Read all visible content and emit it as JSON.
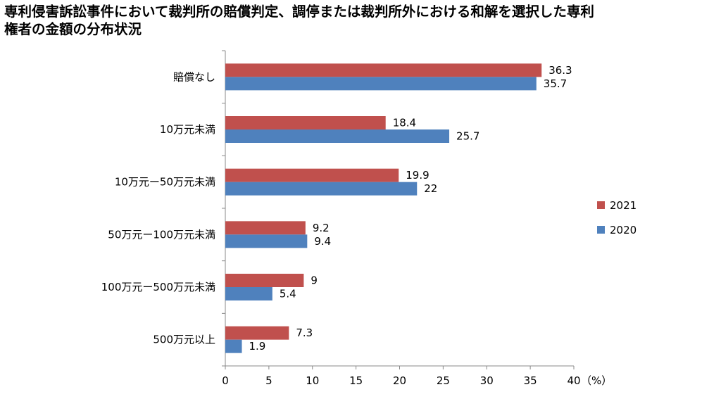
{
  "title_lines": [
    "専利侵害訴訟事件において裁判所の賠償判定、調停または裁判所外における和解を選択した専利",
    "権者の金額の分布状況"
  ],
  "chart_data": {
    "type": "bar",
    "orientation": "horizontal",
    "title": "専利侵害訴訟事件において裁判所の賠償判定、調停または裁判所外における和解を選択した専利権者の金額の分布状況",
    "categories": [
      "賠償なし",
      "10万元未満",
      "10万元ー50万元未満",
      "50万元ー100万元未満",
      "100万元ー500万元未満",
      "500万元以上"
    ],
    "series": [
      {
        "name": "2021",
        "color": "#c0504d",
        "values": [
          36.3,
          18.4,
          19.9,
          9.2,
          9,
          7.3
        ]
      },
      {
        "name": "2020",
        "color": "#4f81bd",
        "values": [
          35.7,
          25.7,
          22,
          9.4,
          5.4,
          1.9
        ]
      }
    ],
    "value_labels": {
      "2021": [
        "36.3",
        "18.4",
        "19.9",
        "9.2",
        "9",
        "7.3"
      ],
      "2020": [
        "35.7",
        "25.7",
        "22",
        "9.4",
        "5.4",
        "1.9"
      ]
    },
    "xlim": [
      0,
      40
    ],
    "xticks": [
      0,
      5,
      10,
      15,
      20,
      25,
      30,
      35,
      40
    ],
    "x_unit": "（%）",
    "grid": false,
    "legend_position": "right"
  }
}
